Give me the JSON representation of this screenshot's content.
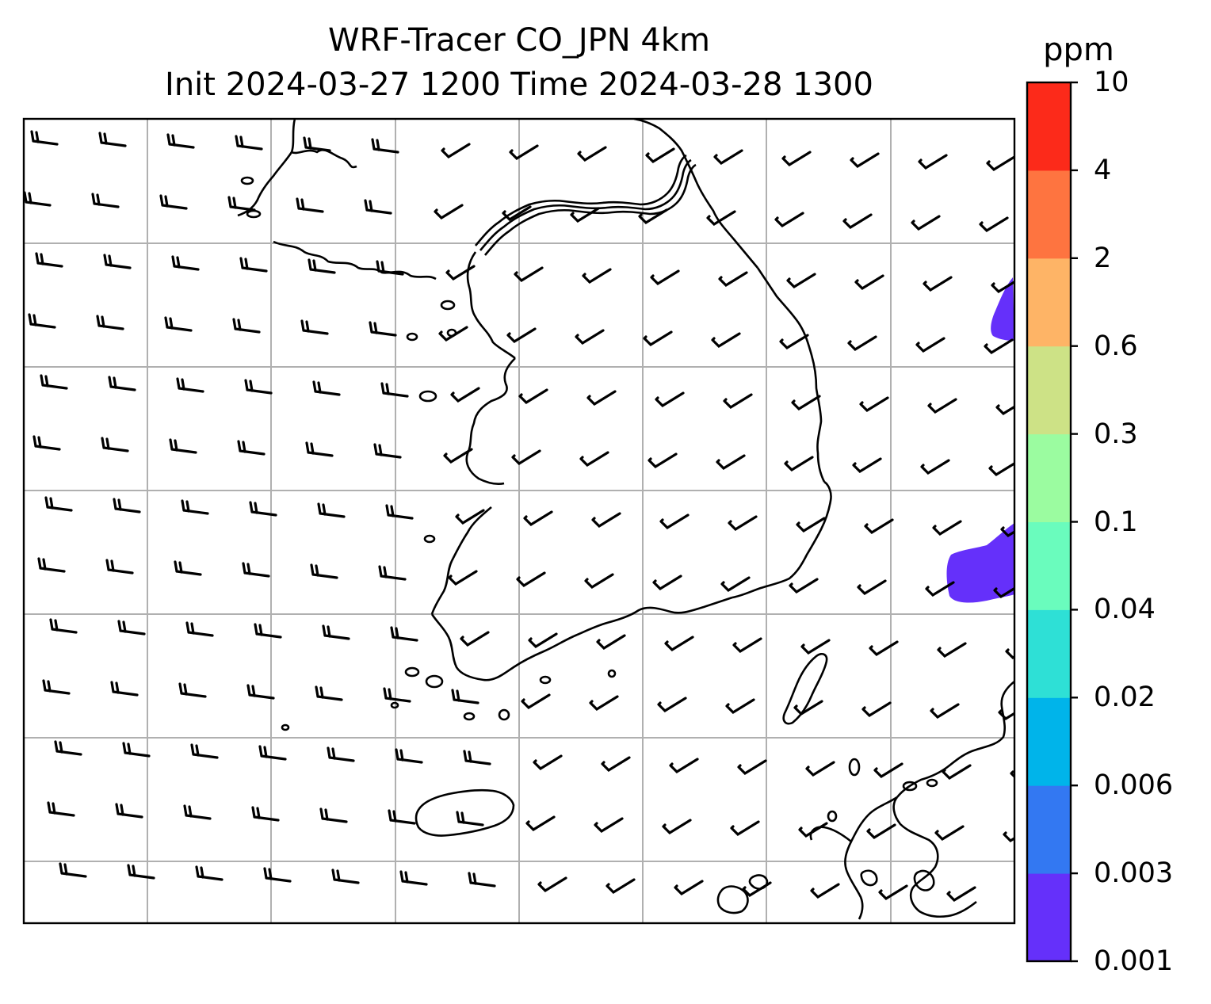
{
  "title": {
    "line1": "WRF-Tracer CO_JPN 4km",
    "line2": "Init 2024-03-27 1200 Time 2024-03-28 1300"
  },
  "colorbar": {
    "unit": "ppm",
    "levels": [
      {
        "label": "0.001",
        "color": "#6530fa"
      },
      {
        "label": "0.003",
        "color": "#3378f2"
      },
      {
        "label": "0.006",
        "color": "#00b4ea"
      },
      {
        "label": "0.02",
        "color": "#2ee0d6"
      },
      {
        "label": "0.04",
        "color": "#6afcbd"
      },
      {
        "label": "0.1",
        "color": "#9bfca0"
      },
      {
        "label": "0.3",
        "color": "#cde286"
      },
      {
        "label": "0.6",
        "color": "#feb466"
      },
      {
        "label": "2",
        "color": "#fe7440"
      },
      {
        "label": "4",
        "color": "#fc2a1a"
      },
      {
        "label": "10",
        "color": null
      }
    ]
  },
  "map": {
    "field": "CO tracer",
    "grid": true,
    "wind_barbs": "westerly in west, west-southwesterly to southwesterly in east"
  }
}
